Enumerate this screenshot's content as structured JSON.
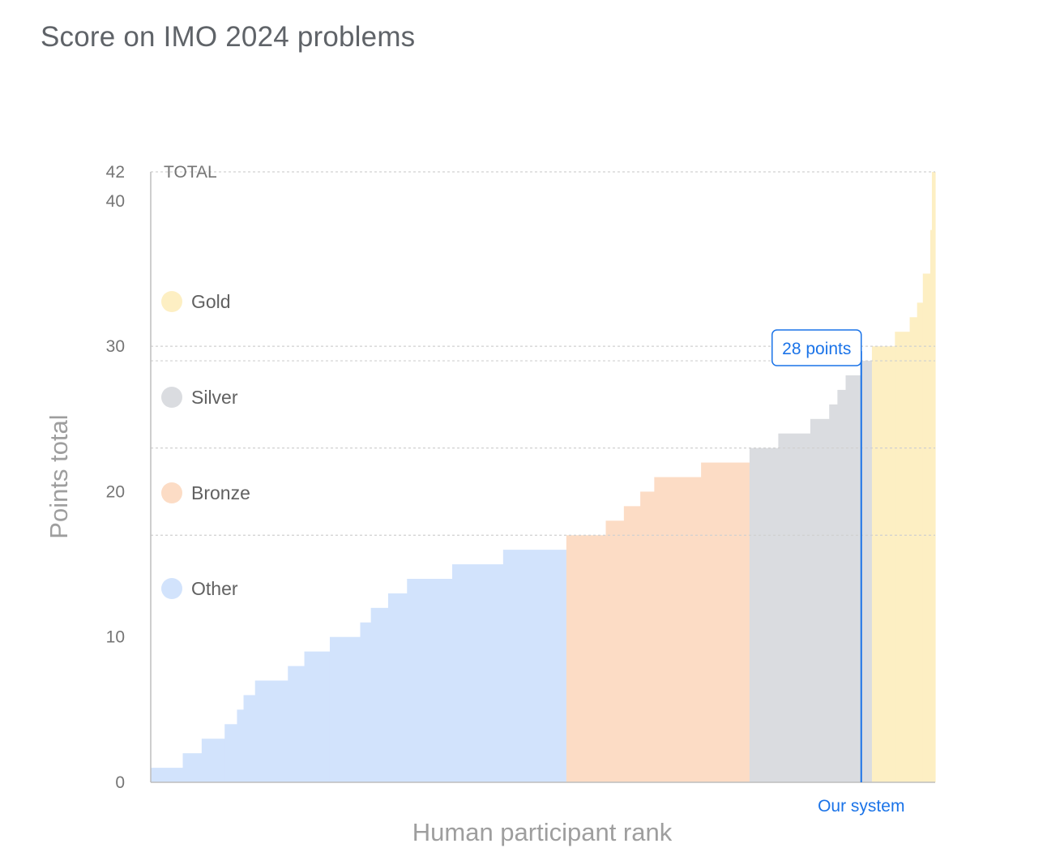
{
  "chart_data": {
    "type": "bar",
    "title": "Score on IMO 2024 problems",
    "xlabel": "Human participant rank",
    "ylabel": "Points total",
    "ylim": [
      0,
      42
    ],
    "yticks": [
      0,
      10,
      20,
      30,
      40,
      42
    ],
    "total_label": "TOTAL",
    "thresholds": [
      {
        "name": "Bronze",
        "value": 17
      },
      {
        "name": "Silver",
        "value": 23
      },
      {
        "name": "Gold",
        "value": 29
      }
    ],
    "legend": [
      {
        "name": "Gold",
        "color": "#fdefc3"
      },
      {
        "name": "Silver",
        "color": "#dadce0"
      },
      {
        "name": "Bronze",
        "color": "#fcdcc5"
      },
      {
        "name": "Other",
        "color": "#d2e3fc"
      }
    ],
    "series": [
      {
        "name": "Other",
        "color": "#d2e3fc",
        "steps": [
          {
            "value": 1,
            "span": 39
          },
          {
            "value": 2,
            "span": 23
          },
          {
            "value": 3,
            "span": 28
          },
          {
            "value": 4,
            "span": 15
          },
          {
            "value": 5,
            "span": 8
          },
          {
            "value": 6,
            "span": 14
          },
          {
            "value": 7,
            "span": 40
          },
          {
            "value": 8,
            "span": 20
          },
          {
            "value": 9,
            "span": 31
          },
          {
            "value": 10,
            "span": 37
          },
          {
            "value": 11,
            "span": 13
          },
          {
            "value": 12,
            "span": 21
          },
          {
            "value": 13,
            "span": 23
          },
          {
            "value": 14,
            "span": 55
          },
          {
            "value": 15,
            "span": 62
          },
          {
            "value": 16,
            "span": 77
          }
        ]
      },
      {
        "name": "Bronze",
        "color": "#fcdcc5",
        "steps": [
          {
            "value": 17,
            "span": 48
          },
          {
            "value": 18,
            "span": 22
          },
          {
            "value": 19,
            "span": 20
          },
          {
            "value": 20,
            "span": 17
          },
          {
            "value": 21,
            "span": 57
          },
          {
            "value": 22,
            "span": 59
          }
        ]
      },
      {
        "name": "Silver",
        "color": "#dadce0",
        "steps": [
          {
            "value": 23,
            "span": 35
          },
          {
            "value": 24,
            "span": 39
          },
          {
            "value": 25,
            "span": 23
          },
          {
            "value": 26,
            "span": 10
          },
          {
            "value": 27,
            "span": 10
          },
          {
            "value": 28,
            "span": 18
          },
          {
            "value": 29,
            "span": 14
          }
        ]
      },
      {
        "name": "Gold",
        "color": "#fdefc3",
        "steps": [
          {
            "value": 30,
            "span": 28
          },
          {
            "value": 31,
            "span": 18
          },
          {
            "value": 32,
            "span": 9
          },
          {
            "value": 33,
            "span": 7
          },
          {
            "value": 35,
            "span": 9
          },
          {
            "value": 38,
            "span": 2
          },
          {
            "value": 42,
            "span": 4
          }
        ]
      }
    ],
    "our_system": {
      "label": "Our system",
      "score": 28,
      "callout": "28 points",
      "color": "#1a73e8"
    }
  }
}
